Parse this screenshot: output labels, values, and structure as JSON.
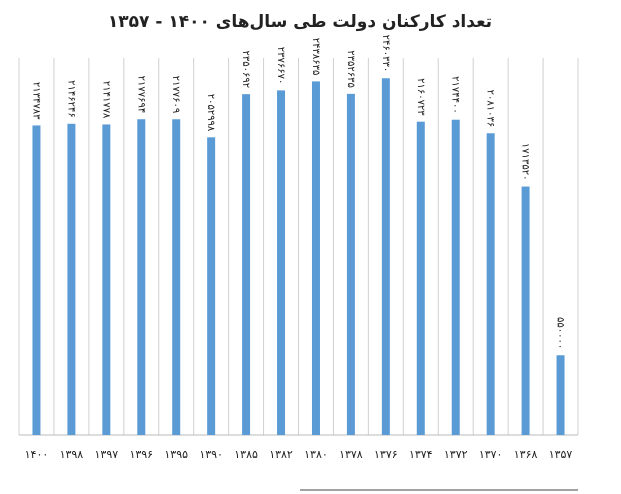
{
  "chart_data": {
    "type": "bar",
    "title": "تعداد کارکنان دولت طی سال‌های ۱۴۰۰ - ۱۳۵۷",
    "categories": [
      "۱۴۰۰",
      "۱۳۹۸",
      "۱۳۹۷",
      "۱۳۹۶",
      "۱۳۹۵",
      "۱۳۹۰",
      "۱۳۸۵",
      "۱۳۸۲",
      "۱۳۸۰",
      "۱۳۷۸",
      "۱۳۷۶",
      "۱۳۷۴",
      "۱۳۷۲",
      "۱۳۷۰",
      "۱۳۶۸",
      "۱۳۵۷"
    ],
    "values": [
      2134783,
      2146246,
      2141778,
      2177694,
      2177609,
      2052998,
      2350692,
      2376670,
      2438635,
      2352635,
      2460330,
      2160723,
      2174400,
      2081036,
      1713520,
      550000
    ],
    "value_labels": [
      "۲۱۳۴۷۸۳",
      "۲۱۴۶۲۴۶",
      "۲۱۴۱۷۷۸",
      "۲۱۷۷۶۹۴",
      "۲۱۷۷۶۰۹",
      "۲۰۵۲۹۹۸",
      "۲۳۵۰۶۹۲",
      "۲۳۷۶۶۷۰",
      "۲۴۳۸۶۳۵",
      "۲۳۵۲۶۳۵",
      "۲۴۶۰۳۳۰",
      "۲۱۶۰۷۲۳",
      "۲۱۷۴۴۰۰",
      "۲۰۸۱۰۳۶",
      "۱۷۱۳۵۲۰",
      "۵۵۰۰۰۰"
    ],
    "color": "#5b9bd5",
    "ylim": [
      0,
      2600000
    ],
    "grid": true
  }
}
